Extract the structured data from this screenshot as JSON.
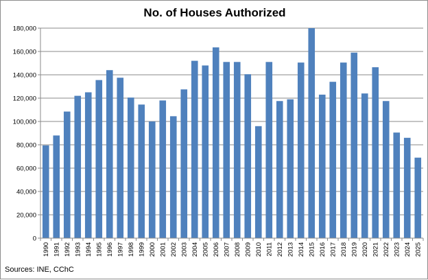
{
  "chart_data": {
    "type": "bar",
    "title": "No. of Houses Authorized",
    "xlabel": "",
    "ylabel": "",
    "ylim": [
      0,
      180000
    ],
    "ytick_step": 20000,
    "ytick_labels": [
      "0",
      "20,000",
      "40,000",
      "60,000",
      "80,000",
      "100,000",
      "120,000",
      "140,000",
      "160,000",
      "180,000"
    ],
    "grid": true,
    "bar_color": "#4f81bd",
    "categories": [
      "1990",
      "1991",
      "1992",
      "1993",
      "1994",
      "1995",
      "1996",
      "1997",
      "1998",
      "1999",
      "2000",
      "2001",
      "2002",
      "2003",
      "2004",
      "2005",
      "2006",
      "2007",
      "2008",
      "2009",
      "2010",
      "2011",
      "2012",
      "2013",
      "2014",
      "2015",
      "2016",
      "2017",
      "2018",
      "2019",
      "2020",
      "2021",
      "2022",
      "2023",
      "2024",
      "2025"
    ],
    "values": [
      79500,
      88000,
      108500,
      122000,
      125000,
      135500,
      144000,
      137500,
      120500,
      114500,
      100000,
      118000,
      104500,
      127500,
      152000,
      148000,
      163500,
      151000,
      151000,
      140500,
      96000,
      151000,
      117500,
      119000,
      150500,
      180000,
      123000,
      134000,
      150500,
      159000,
      124000,
      146500,
      117500,
      90500,
      86000,
      69000
    ]
  },
  "source_note": "Sources: INE, CChC"
}
